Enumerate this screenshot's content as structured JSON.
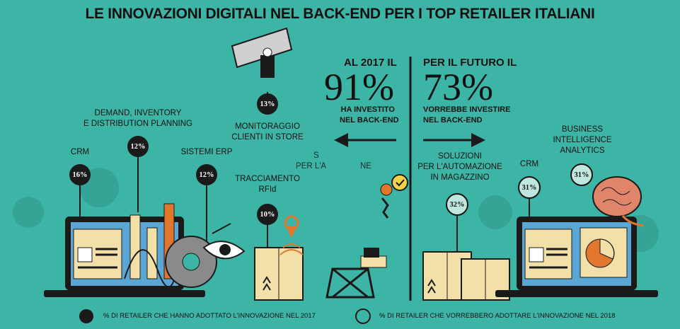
{
  "title": "LE INNOVAZIONI DIGITALI NEL BACK-END PER I TOP RETAILER ITALIANI",
  "left_stat": {
    "heading": "AL 2017 IL",
    "value": "91%",
    "caption_line1": "HA INVESTITO",
    "caption_line2": "NEL BACK-END"
  },
  "right_stat": {
    "heading": "PER IL FUTURO IL",
    "value": "73%",
    "caption_line1": "VORREBBE INVESTIRE",
    "caption_line2": "NEL BACK-END"
  },
  "items_2017": [
    {
      "label": "CRM",
      "value": "16%"
    },
    {
      "label_line1": "DEMAND, INVENTORY",
      "label_line2": "E DISTRIBUTION PLANNING",
      "value": "12%"
    },
    {
      "label": "SISTEMI ERP",
      "value": "12%"
    },
    {
      "label_line1": "TRACCIAMENTO",
      "label_line2": "RFId",
      "value": "10%"
    },
    {
      "label_line1": "MONITORAGGIO",
      "label_line2": "CLIENTI IN STORE",
      "value": "13%"
    }
  ],
  "items_future": [
    {
      "label_line1": "SOLUZIONI",
      "label_line2": "PER L'AUTOMAZIONE",
      "label_line3": "IN MAGAZZINO",
      "value": "32%"
    },
    {
      "label": "CRM",
      "value": "31%"
    },
    {
      "label_line1": "BUSINESS",
      "label_line2": "INTELLIGENCE",
      "label_line3": "ANALYTICS",
      "value": "31%"
    }
  ],
  "ghost_text": {
    "line1": "S",
    "line2": "PER L'A",
    "line2_tail": "NE"
  },
  "legend": {
    "adopted_2017": "% DI RETAILER CHE HANNO ADOTTATO L'INNOVAZIONE NEL 2017",
    "desired_2018": "% DI RETAILER CHE VORREBBERO ADOTTARE L'INNOVAZIONE NEL 2018"
  },
  "colors": {
    "background": "#3db5a6",
    "dark": "#1a1a1a",
    "laptop_screen": "#5aa7d6",
    "box": "#f2e0a8",
    "accent_orange": "#e0772c"
  }
}
